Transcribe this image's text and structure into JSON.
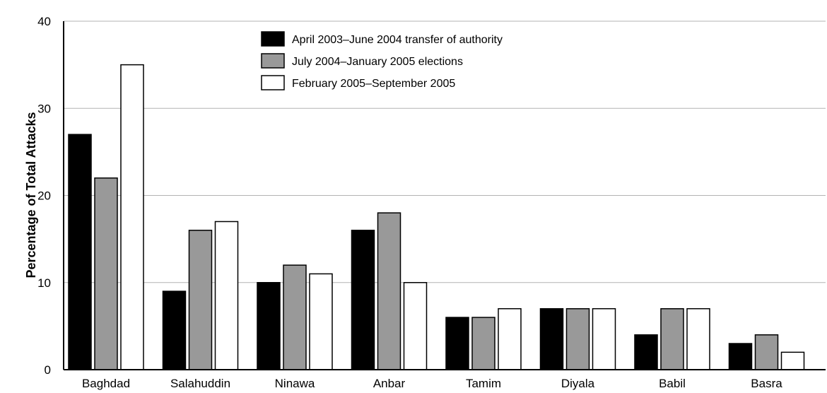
{
  "chart_data": {
    "type": "bar",
    "title": "",
    "xlabel": "",
    "ylabel": "Percentage of Total Attacks",
    "ylim": [
      0,
      40
    ],
    "yticks": [
      0,
      10,
      20,
      30,
      40
    ],
    "grid": "horizontal",
    "legend_position": "top-center",
    "categories": [
      "Baghdad",
      "Salahuddin",
      "Ninawa",
      "Anbar",
      "Tamim",
      "Diyala",
      "Babil",
      "Basra"
    ],
    "series": [
      {
        "name": "April 2003–June 2004 transfer of authority",
        "color": "#000000",
        "values": [
          27,
          9,
          10,
          16,
          6,
          7,
          4,
          3
        ]
      },
      {
        "name": "July 2004–January 2005 elections",
        "color": "#999999",
        "values": [
          22,
          16,
          12,
          18,
          6,
          7,
          7,
          4
        ]
      },
      {
        "name": "February 2005–September 2005",
        "color": "#ffffff",
        "values": [
          35,
          17,
          11,
          10,
          7,
          7,
          7,
          2
        ]
      }
    ]
  }
}
